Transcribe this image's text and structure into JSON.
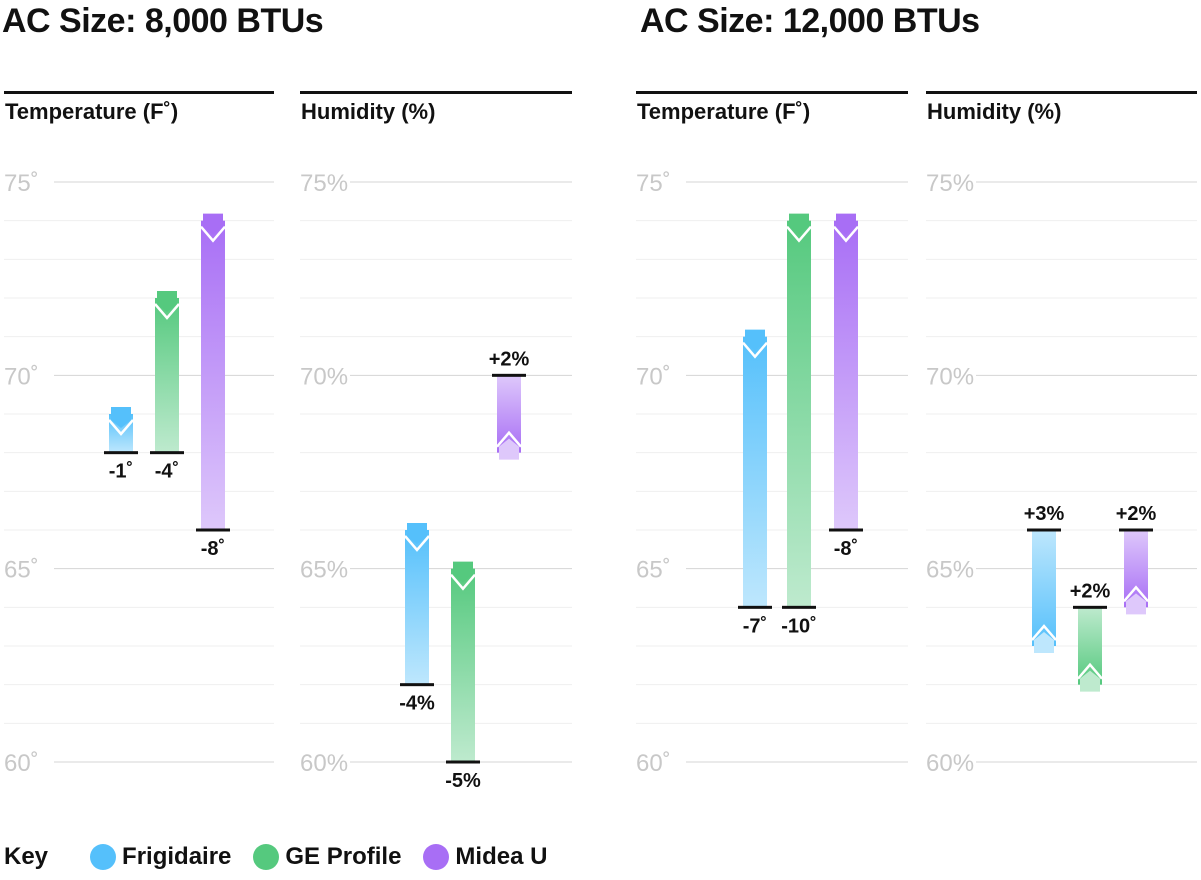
{
  "colors": {
    "Frigidaire": "#55c0fb",
    "GE Profile": "#55c97e",
    "Midea U": "#a86ef5",
    "axis_text": "#c8c8c8",
    "grid": "#e6e6e6",
    "header_rule": "#111111"
  },
  "sections": [
    {
      "title": "AC Size: 8,000 BTUs"
    },
    {
      "title": "AC Size: 12,000 BTUs"
    }
  ],
  "key": {
    "title": "Key",
    "items": [
      {
        "label": "Frigidaire",
        "color": "#55c0fb"
      },
      {
        "label": "GE Profile",
        "color": "#55c97e"
      },
      {
        "label": "Midea U",
        "color": "#a86ef5"
      }
    ]
  },
  "chart_data": [
    {
      "type": "bar",
      "section": "AC Size: 8,000 BTUs",
      "title": "Temperature (F˚)",
      "ylim": [
        60,
        75
      ],
      "yticks": [
        "60˚",
        "65˚",
        "70˚",
        "75˚"
      ],
      "grid": true,
      "series": [
        {
          "name": "Frigidaire",
          "from": 69,
          "to": 68,
          "label": "-1˚"
        },
        {
          "name": "GE Profile",
          "from": 72,
          "to": 68,
          "label": "-4˚"
        },
        {
          "name": "Midea U",
          "from": 74,
          "to": 66,
          "label": "-8˚"
        }
      ]
    },
    {
      "type": "bar",
      "section": "AC Size: 8,000 BTUs",
      "title": "Humidity (%)",
      "ylim": [
        60,
        75
      ],
      "yticks": [
        "60%",
        "65%",
        "70%",
        "75%"
      ],
      "grid": true,
      "series": [
        {
          "name": "Frigidaire",
          "from": 66,
          "to": 62,
          "label": "-4%"
        },
        {
          "name": "GE Profile",
          "from": 65,
          "to": 60,
          "label": "-5%"
        },
        {
          "name": "Midea U",
          "from": 68,
          "to": 70,
          "label": "+2%"
        }
      ]
    },
    {
      "type": "bar",
      "section": "AC Size: 12,000 BTUs",
      "title": "Temperature (F˚)",
      "ylim": [
        60,
        75
      ],
      "yticks": [
        "60˚",
        "65˚",
        "70˚",
        "75˚"
      ],
      "grid": true,
      "series": [
        {
          "name": "Frigidaire",
          "from": 71,
          "to": 64,
          "label": "-7˚"
        },
        {
          "name": "GE Profile",
          "from": 74,
          "to": 64,
          "label": "-10˚"
        },
        {
          "name": "Midea U",
          "from": 74,
          "to": 66,
          "label": "-8˚"
        }
      ]
    },
    {
      "type": "bar",
      "section": "AC Size: 12,000 BTUs",
      "title": "Humidity (%)",
      "ylim": [
        60,
        75
      ],
      "yticks": [
        "60%",
        "65%",
        "70%",
        "75%"
      ],
      "grid": true,
      "series": [
        {
          "name": "Frigidaire",
          "from": 63,
          "to": 66,
          "label": "+3%"
        },
        {
          "name": "GE Profile",
          "from": 62,
          "to": 64,
          "label": "+2%"
        },
        {
          "name": "Midea U",
          "from": 64,
          "to": 66,
          "label": "+2%"
        }
      ]
    }
  ]
}
